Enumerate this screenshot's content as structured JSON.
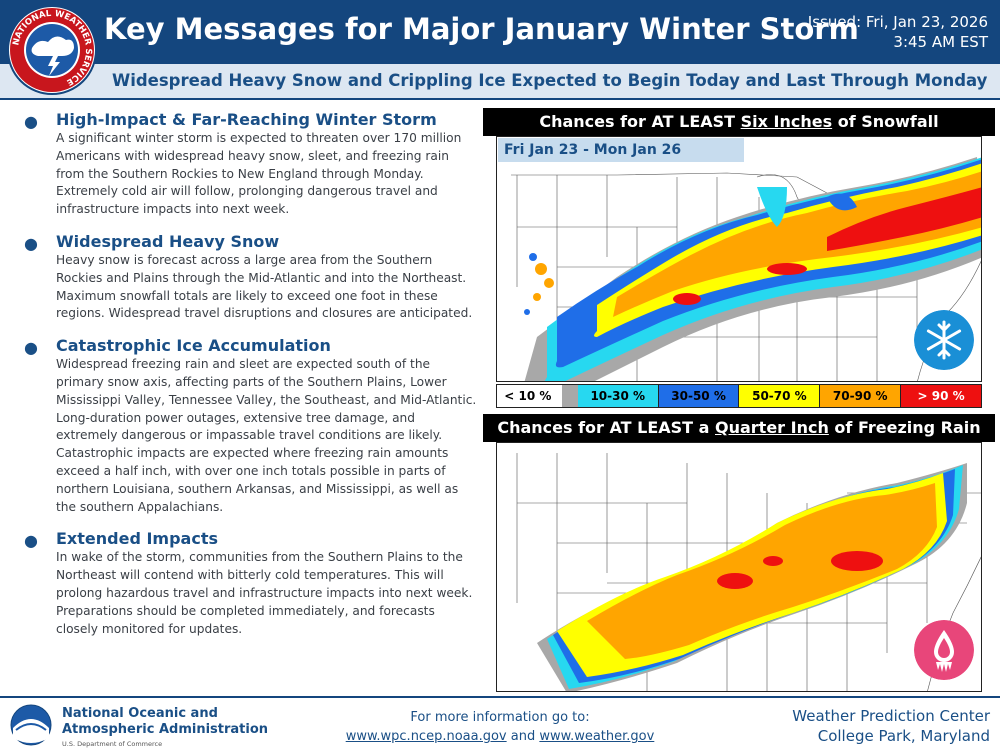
{
  "header": {
    "title": "Key Messages for Major January Winter Storm",
    "issued_line1": "Issued: Fri, Jan 23, 2026",
    "issued_line2": "3:45 AM EST",
    "logo_text": "NATIONAL WEATHER SERVICE"
  },
  "subtitle": "Widespread Heavy Snow and Crippling Ice Expected to Begin Today and Last Through Monday",
  "bullets": [
    {
      "heading": "High-Impact & Far-Reaching Winter Storm",
      "body": "A significant winter storm is expected to threaten over 170 million Americans with widespread heavy snow, sleet, and freezing rain from the Southern Rockies to New England through Monday. Extremely cold air will follow, prolonging dangerous travel and infrastructure impacts into next week."
    },
    {
      "heading": "Widespread Heavy Snow",
      "body": "Heavy snow is forecast across a large area from the Southern Rockies and Plains through the Mid-Atlantic and into the Northeast. Maximum snowfall totals are likely to exceed one foot in these regions. Widespread travel disruptions and closures are anticipated."
    },
    {
      "heading": "Catastrophic Ice Accumulation",
      "body": "Widespread freezing rain and sleet are expected south of the primary snow axis, affecting parts of the Southern Plains, Lower Mississippi Valley, Tennessee Valley, the Southeast, and Mid-Atlantic. Long-duration power outages, extensive tree damage, and extremely dangerous or impassable travel conditions are likely. Catastrophic impacts are expected where freezing rain amounts exceed a half inch, with over one inch totals possible in parts of northern Louisiana, southern Arkansas, and Mississippi, as well as the southern Appalachians."
    },
    {
      "heading": "Extended Impacts",
      "body": "In wake of the storm, communities from the Southern Plains to the Northeast will contend with bitterly cold temperatures. This will prolong hazardous travel and infrastructure impacts into next week. Preparations should be completed immediately, and forecasts closely monitored for updates."
    }
  ],
  "snow_panel": {
    "title_pre": "Chances for AT LEAST ",
    "title_emph": "Six Inches",
    "title_post": " of Snowfall",
    "date_range": "Fri Jan 23 - Mon Jan 26",
    "icon": "snowflake-icon"
  },
  "ice_panel": {
    "title_pre": "Chances for AT LEAST a ",
    "title_emph": "Quarter Inch",
    "title_post": " of Freezing Rain",
    "icon": "ice-drop-icon"
  },
  "legend": [
    {
      "label": "< 10 %",
      "color": "#a8a8a8"
    },
    {
      "label": "10-30 %",
      "color": "#27d8f0"
    },
    {
      "label": "30-50 %",
      "color": "#1f6ee8"
    },
    {
      "label": "50-70 %",
      "color": "#ffff00"
    },
    {
      "label": "70-90 %",
      "color": "#ffa500"
    },
    {
      "label": "> 90 %",
      "color": "#ee1010"
    }
  ],
  "footer": {
    "noaa_line1": "National Oceanic and",
    "noaa_line2": "Atmospheric Administration",
    "noaa_dept": "U.S. Department of Commerce",
    "more_info": "For more information go to:",
    "link1": "www.wpc.ncep.noaa.gov",
    "and": " and ",
    "link2": "www.weather.gov",
    "wpc_line1": "Weather Prediction Center",
    "wpc_line2": "College Park, Maryland"
  }
}
